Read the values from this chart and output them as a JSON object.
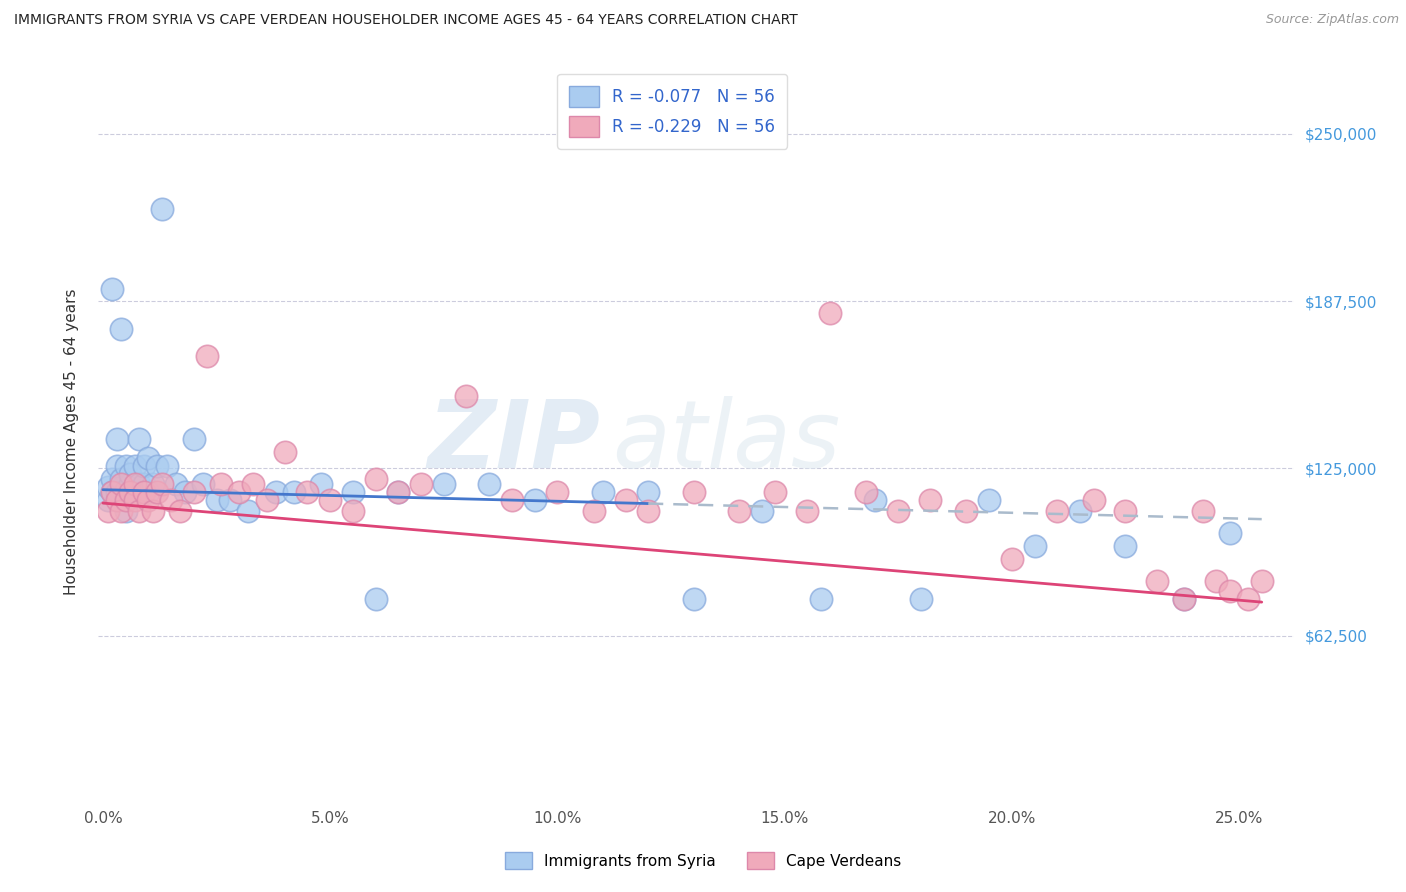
{
  "title": "IMMIGRANTS FROM SYRIA VS CAPE VERDEAN HOUSEHOLDER INCOME AGES 45 - 64 YEARS CORRELATION CHART",
  "source": "Source: ZipAtlas.com",
  "ylabel": "Householder Income Ages 45 - 64 years",
  "xlabel_ticks": [
    "0.0%",
    "5.0%",
    "10.0%",
    "15.0%",
    "20.0%",
    "25.0%"
  ],
  "xlabel_vals": [
    0.0,
    0.05,
    0.1,
    0.15,
    0.2,
    0.25
  ],
  "ytick_labels": [
    "$62,500",
    "$125,000",
    "$187,500",
    "$250,000"
  ],
  "ytick_vals": [
    62500,
    125000,
    187500,
    250000
  ],
  "ylim": [
    0,
    270000
  ],
  "xlim": [
    -0.001,
    0.262
  ],
  "r_syria": -0.077,
  "n_syria": 56,
  "r_cape": -0.229,
  "n_cape": 56,
  "syria_color": "#aaccf0",
  "cape_color": "#f0aabb",
  "syria_line_color": "#4477cc",
  "cape_line_color": "#dd4477",
  "dashed_line_color": "#aabbcc",
  "watermark_zip": "ZIP",
  "watermark_atlas": "atlas",
  "background_color": "#ffffff",
  "grid_color": "#ccccdd",
  "syria_x": [
    0.001,
    0.001,
    0.002,
    0.002,
    0.002,
    0.003,
    0.003,
    0.003,
    0.004,
    0.004,
    0.005,
    0.005,
    0.005,
    0.006,
    0.006,
    0.007,
    0.007,
    0.008,
    0.008,
    0.009,
    0.009,
    0.01,
    0.01,
    0.011,
    0.012,
    0.013,
    0.014,
    0.016,
    0.018,
    0.02,
    0.022,
    0.025,
    0.028,
    0.032,
    0.038,
    0.042,
    0.048,
    0.055,
    0.06,
    0.065,
    0.075,
    0.085,
    0.095,
    0.11,
    0.12,
    0.13,
    0.145,
    0.158,
    0.17,
    0.18,
    0.195,
    0.205,
    0.215,
    0.225,
    0.238,
    0.248
  ],
  "syria_y": [
    113000,
    118000,
    121000,
    192000,
    116000,
    136000,
    126000,
    116000,
    177000,
    121000,
    117000,
    109000,
    126000,
    119000,
    123000,
    116000,
    126000,
    119000,
    136000,
    119000,
    126000,
    116000,
    129000,
    119000,
    126000,
    222000,
    126000,
    119000,
    116000,
    136000,
    119000,
    113000,
    113000,
    109000,
    116000,
    116000,
    119000,
    116000,
    76000,
    116000,
    119000,
    119000,
    113000,
    116000,
    116000,
    76000,
    109000,
    76000,
    113000,
    76000,
    113000,
    96000,
    109000,
    96000,
    76000,
    101000
  ],
  "cape_x": [
    0.001,
    0.002,
    0.003,
    0.004,
    0.004,
    0.005,
    0.006,
    0.007,
    0.007,
    0.008,
    0.009,
    0.01,
    0.011,
    0.012,
    0.013,
    0.015,
    0.017,
    0.02,
    0.023,
    0.026,
    0.03,
    0.033,
    0.036,
    0.04,
    0.045,
    0.05,
    0.055,
    0.06,
    0.065,
    0.07,
    0.08,
    0.09,
    0.1,
    0.108,
    0.115,
    0.12,
    0.13,
    0.14,
    0.148,
    0.155,
    0.16,
    0.168,
    0.175,
    0.182,
    0.19,
    0.2,
    0.21,
    0.218,
    0.225,
    0.232,
    0.238,
    0.242,
    0.245,
    0.248,
    0.252,
    0.255
  ],
  "cape_y": [
    109000,
    116000,
    113000,
    119000,
    109000,
    113000,
    116000,
    119000,
    113000,
    109000,
    116000,
    113000,
    109000,
    116000,
    119000,
    113000,
    109000,
    116000,
    167000,
    119000,
    116000,
    119000,
    113000,
    131000,
    116000,
    113000,
    109000,
    121000,
    116000,
    119000,
    152000,
    113000,
    116000,
    109000,
    113000,
    109000,
    116000,
    109000,
    116000,
    109000,
    183000,
    116000,
    109000,
    113000,
    109000,
    91000,
    109000,
    113000,
    109000,
    83000,
    76000,
    109000,
    83000,
    79000,
    76000,
    83000
  ]
}
